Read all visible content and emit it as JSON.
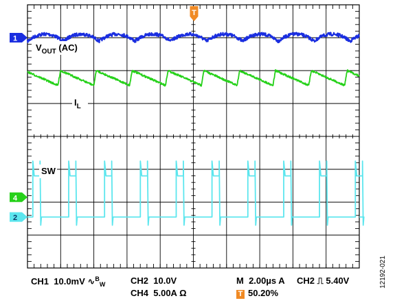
{
  "chart_data": {
    "type": "line",
    "title": "",
    "grid": true,
    "x_divisions": 10,
    "y_divisions": 8,
    "time_per_division": "2.00µs",
    "trigger_position_percent": 50.2,
    "series": [
      {
        "name": "VOUT (AC)",
        "channel": "1",
        "color": "#1a2ee0",
        "label_parts": {
          "main": "V",
          "sub": "OUT",
          "suffix": " (AC)"
        },
        "marker_level_div": 1.0,
        "waveform": "ripple",
        "period_div": 1.08,
        "ripple_amplitude_div": 0.12,
        "noise_div": 0.05
      },
      {
        "name": "IL",
        "channel": "",
        "color": "#26d11a",
        "label_parts": {
          "main": "I",
          "sub": "L",
          "suffix": ""
        },
        "waveform": "sawtooth",
        "low_div": 2.0,
        "high_div": 2.45,
        "period_div": 1.08,
        "noise_div": 0.03
      },
      {
        "name": "SW",
        "channel": "2",
        "color": "#5ce6ee",
        "label_parts": {
          "main": "SW",
          "sub": "",
          "suffix": ""
        },
        "waveform": "pulse",
        "low_div": 6.45,
        "high_div": 5.2,
        "spike_div": 4.75,
        "period_div": 1.08,
        "duty": 0.2
      }
    ],
    "channel_markers": [
      {
        "channel": "1",
        "color": "#1a2ee0",
        "level_div": 1.0
      },
      {
        "channel": "4",
        "color": "#26d11a",
        "level_div": 5.85
      },
      {
        "channel": "2",
        "color": "#5ce6ee",
        "level_div": 6.45
      }
    ],
    "trigger_marker": {
      "label": "T",
      "color": "#f08a24"
    }
  },
  "status": {
    "ch1_label": "CH1",
    "ch1_scale": "10.0mV",
    "bw_symbol": "∿",
    "bw_main": "B",
    "bw_sub": "W",
    "ch2_label": "CH2",
    "ch2_scale": "10.0V",
    "ch4_label": "CH4",
    "ch4_scale": "5.00A Ω",
    "timebase_prefix": "M",
    "timebase": "2.00µs",
    "timebase_channel": "A",
    "trigger_channel": "CH2",
    "trigger_slope": "⎍",
    "trigger_level": "5.40V",
    "trigger_badge": "T",
    "trigger_position": "50.20%"
  },
  "figure_id": "12192-021"
}
